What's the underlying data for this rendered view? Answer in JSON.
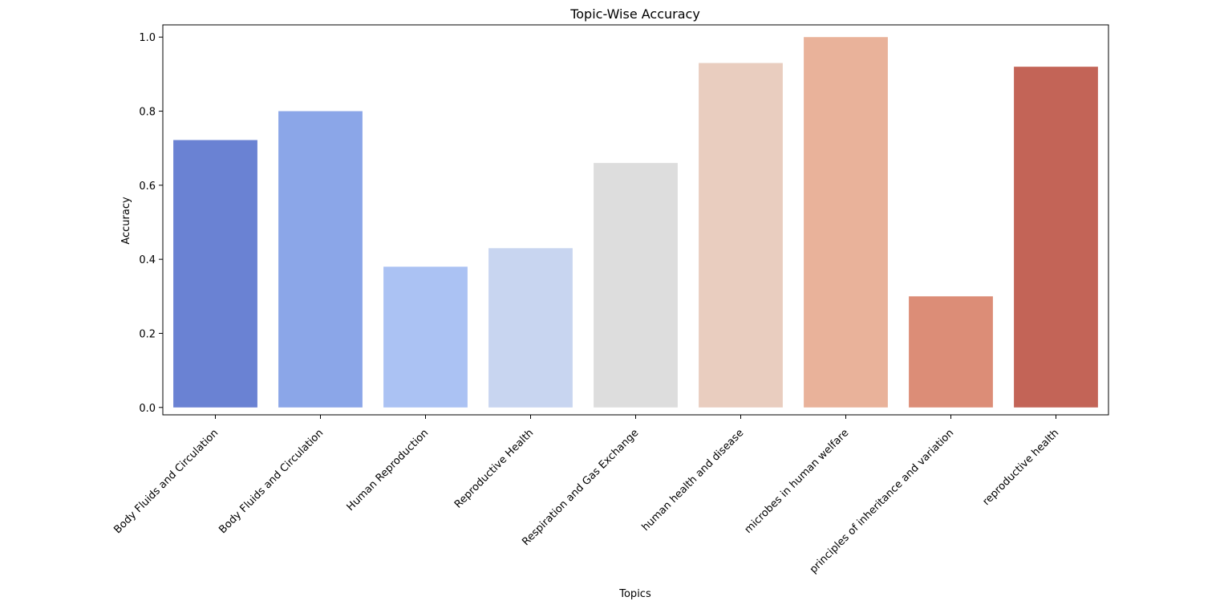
{
  "chart_data": {
    "type": "bar",
    "title": "Topic-Wise Accuracy",
    "xlabel": "Topics",
    "ylabel": "Accuracy",
    "categories": [
      "Body Fluids and Circulation",
      "Body Fluids and Circulation",
      "Human Reproduction",
      "Reproductive Health",
      "Respiration and Gas Exchange",
      "human health and disease",
      "microbes in human welfare",
      "principles of inheritance and variation",
      "reproductive health"
    ],
    "values": [
      0.722,
      0.8,
      0.38,
      0.43,
      0.66,
      0.93,
      1.0,
      0.3,
      0.92
    ],
    "colors": [
      "#6a82d3",
      "#8ba6e8",
      "#abc2f3",
      "#c8d5f0",
      "#dddddd",
      "#e9cdbf",
      "#e9b29a",
      "#dc8d77",
      "#c36457"
    ],
    "ylim": [
      -0.02,
      1.033
    ],
    "yticks": [
      0.0,
      0.2,
      0.4,
      0.6,
      0.8,
      1.0
    ],
    "ytick_labels": [
      "0.0",
      "0.2",
      "0.4",
      "0.6",
      "0.8",
      "1.0"
    ],
    "grid": false,
    "legend": "none"
  }
}
